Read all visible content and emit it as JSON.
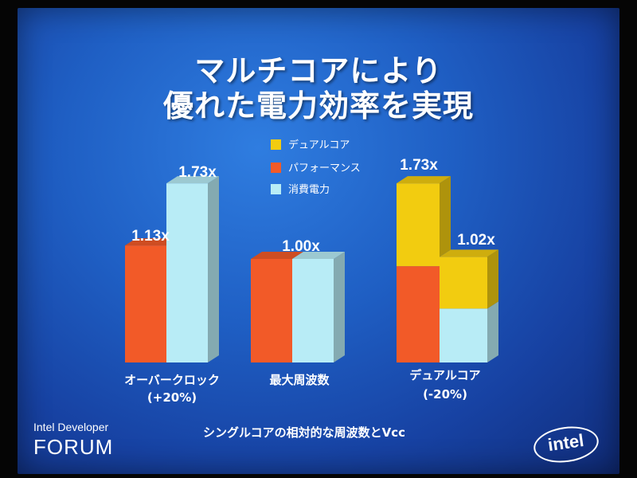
{
  "title_line1": "マルチコアにより",
  "title_line2": "優れた電力効率を実現",
  "footnote": "シングルコアの相対的な周波数とVcc",
  "brand_line1": "Intel Developer",
  "brand_line2": "FORUM",
  "logo_text": "intel",
  "colors": {
    "dual_core": "#f2cc10",
    "performance": "#f25a28",
    "power": "#b8ecf6"
  },
  "chart_data": {
    "type": "bar",
    "legend": [
      "デュアルコア",
      "パフォーマンス",
      "消費電力"
    ],
    "legend_placement": "top-center",
    "categories": [
      {
        "label": "オーバークロック",
        "note": "(+20%)"
      },
      {
        "label": "最大周波数",
        "note": ""
      },
      {
        "label": "デュアルコア",
        "note": "(-20%)"
      }
    ],
    "series": [
      {
        "name": "パフォーマンス",
        "values": [
          1.13,
          1.0,
          1.73
        ]
      },
      {
        "name": "消費電力",
        "values": [
          1.73,
          1.0,
          1.02
        ]
      }
    ],
    "value_labels": [
      "1.13x",
      "1.73x",
      "1.00x",
      "1.73x",
      "1.02x"
    ],
    "stack_split": {
      "category": "デュアルコア",
      "performance_single_core_part": 0.93,
      "power_single_core_part": 0.52
    }
  }
}
